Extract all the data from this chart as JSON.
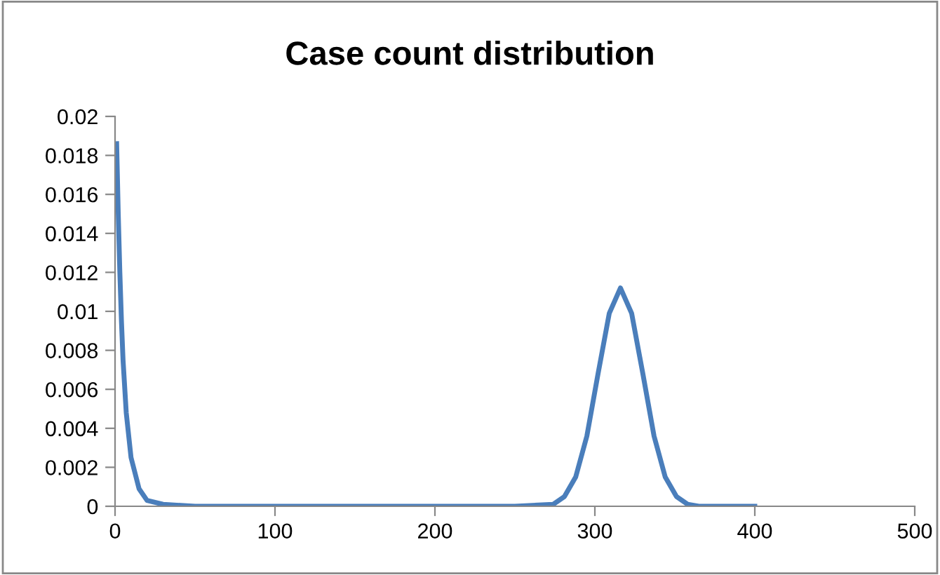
{
  "chart_data": {
    "type": "line",
    "title": "Case count distribution",
    "x": [
      1,
      2,
      3,
      4,
      5,
      7,
      10,
      15,
      20,
      30,
      50,
      100,
      200,
      250,
      274,
      281,
      288,
      295,
      302,
      309,
      316,
      323,
      330,
      337,
      344,
      351,
      358,
      365,
      372,
      380,
      400
    ],
    "series": [
      {
        "color": "#4a7ebb",
        "values": [
          0.0186,
          0.015,
          0.012,
          0.0095,
          0.0075,
          0.0048,
          0.0025,
          0.0009,
          0.0003,
          0.0001,
          0,
          0,
          0,
          0,
          0.0001,
          0.0005,
          0.0015,
          0.0036,
          0.0068,
          0.0099,
          0.0112,
          0.0099,
          0.0068,
          0.0036,
          0.0015,
          0.0005,
          0.0001,
          0,
          0,
          0,
          0
        ]
      }
    ],
    "xlim": [
      0,
      500
    ],
    "xticks": [
      0,
      100,
      200,
      300,
      400,
      500
    ],
    "ylim": [
      0,
      0.02
    ],
    "yticks": [
      0,
      0.002,
      0.004,
      0.006,
      0.008,
      0.01,
      0.012,
      0.014,
      0.016,
      0.018,
      0.02
    ],
    "grid": false,
    "marker": "none",
    "line_style": "solid"
  }
}
